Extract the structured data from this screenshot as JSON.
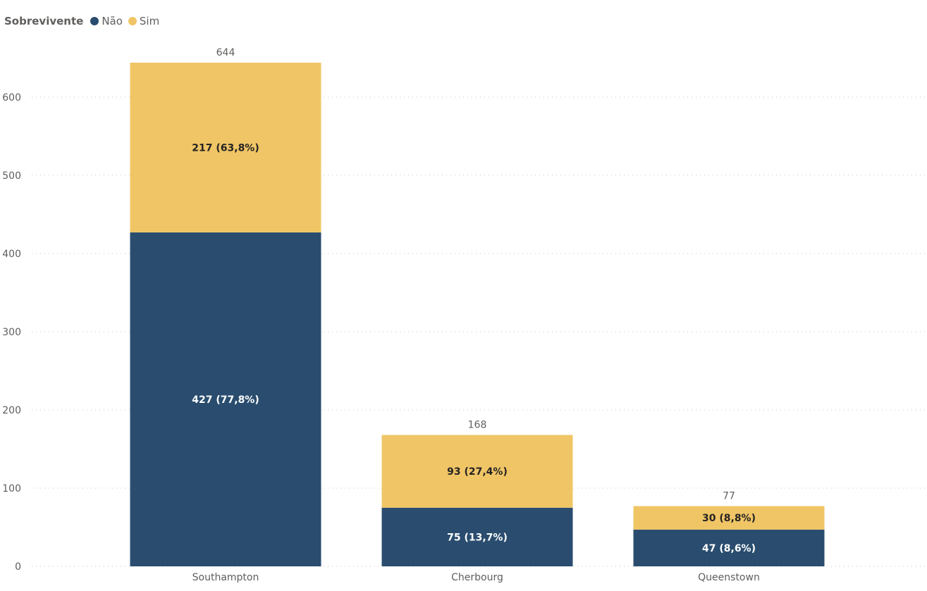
{
  "legend": {
    "title": "Sobrevivente",
    "items": [
      {
        "label": "Não",
        "color": "#2a4d6f"
      },
      {
        "label": "Sim",
        "color": "#f0c566"
      }
    ]
  },
  "chart_data": {
    "type": "bar",
    "stacked": true,
    "categories": [
      "Southampton",
      "Cherbourg",
      "Queenstown"
    ],
    "series": [
      {
        "name": "Não",
        "color": "#2a4d6f",
        "values": [
          427,
          75,
          47
        ],
        "labels": [
          "427 (77,8%)",
          "75 (13,7%)",
          "47 (8,6%)"
        ]
      },
      {
        "name": "Sim",
        "color": "#f0c566",
        "values": [
          217,
          93,
          30
        ],
        "labels": [
          "217 (63,8%)",
          "93 (27,4%)",
          "30 (8,8%)"
        ]
      }
    ],
    "totals": [
      "644",
      "168",
      "77"
    ],
    "y_ticks": [
      0,
      100,
      200,
      300,
      400,
      500,
      600
    ],
    "ylim": [
      0,
      644
    ],
    "grid": true,
    "legend_position": "top-left"
  }
}
